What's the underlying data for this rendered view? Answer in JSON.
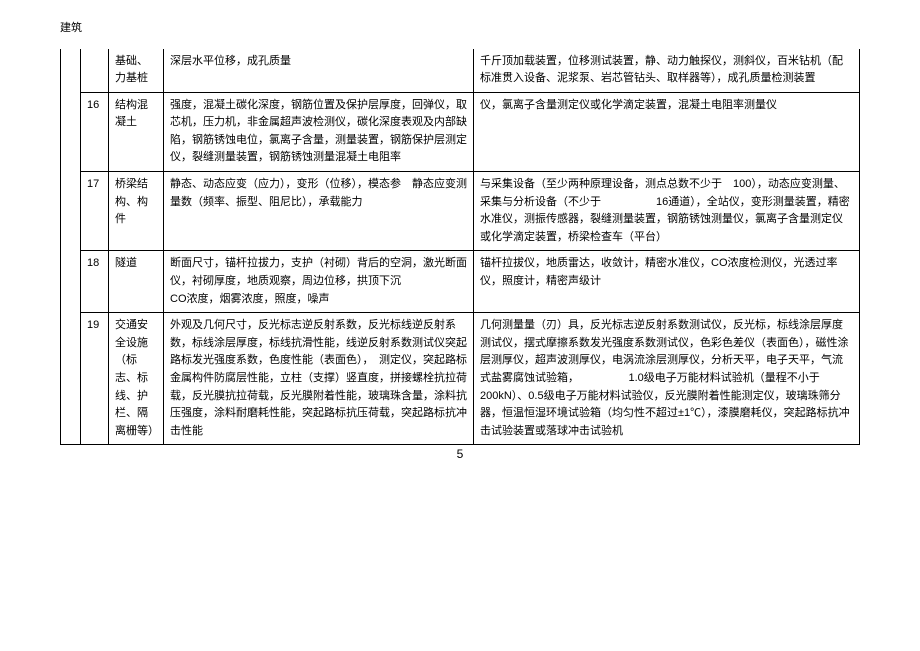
{
  "header": {
    "title": "建筑"
  },
  "footer": {
    "page_number": "5"
  },
  "rows": [
    {
      "num": "",
      "cat": "基础、力基桩",
      "left": "深层水平位移，成孔质量",
      "right": "千斤顶加载装置，位移测试装置，静、动力触探仪，测斜仪，百米钻机（配标准贯入设备、泥浆泵、岩芯管钻头、取样器等），成孔质量检测装置"
    },
    {
      "num": "16",
      "cat": "结构混凝土",
      "left": "强度，混凝土碳化深度，钢筋位置及保护层厚度，回弹仪，取芯机，压力机，非金属超声波检测仪，碳化深度表观及内部缺陷，钢筋锈蚀电位，氯离子含量，测量装置，钢筋保护层测定仪，裂缝测量装置，钢筋锈蚀测量混凝土电阻率",
      "right": "仪，氯离子含量测定仪或化学滴定装置，混凝土电阻率测量仪"
    },
    {
      "num": "17",
      "cat": "桥梁结构、构件",
      "left": "静态、动态应变（应力），变形（位移），模态参　静态应变测量数（频率、振型、阻尼比），承载能力",
      "right": "与采集设备（至少两种原理设备，测点总数不少于　100），动态应变测量、采集与分析设备（不少于　　　　　16通道），全站仪，变形测量装置，精密水准仪，测振传感器，裂缝测量装置，钢筋锈蚀测量仪，氯离子含量测定仪或化学滴定装置，桥梁检查车（平台）"
    },
    {
      "num": "18",
      "cat": "隧道",
      "left": "断面尺寸，锚杆拉拔力，支护（衬砌）背后的空洞，激光断面仪，衬砌厚度，地质观察，周边位移，拱顶下沉　　　　　CO浓度，烟雾浓度，照度，噪声",
      "right": "锚杆拉拔仪，地质雷达，收敛计，精密水准仪，CO浓度检测仪，光透过率仪，照度计，精密声级计"
    },
    {
      "num": "19",
      "cat": "交通安全设施（标志、标线、护栏、隔离栅等）",
      "left": "外观及几何尺寸，反光标志逆反射系数，反光标线逆反射系数，标线涂层厚度，标线抗滑性能，线逆反射系数测试仪突起路标发光强度系数，色度性能（表面色），　测定仪，突起路标金属构件防腐层性能，立柱（支撑）竖直度，拼接螺栓抗拉荷载，反光膜抗拉荷载，反光膜附着性能，玻璃珠含量，涂料抗压强度，涂料耐磨耗性能，突起路标抗压荷载，突起路标抗冲击性能",
      "right": "几何测量量（刃）具，反光标志逆反射系数测试仪，反光标，标线涂层厚度测试仪，摆式摩擦系数发光强度系数测试仪，色彩色差仪（表面色），磁性涂层测厚仪，超声波测厚仪，电涡流涂层测厚仪，分析天平，电子天平，气流式盐雾腐蚀试验箱，　　　　　1.0级电子万能材料试验机（量程不小于　　　　　200kN）、0.5级电子万能材料试验仪，反光膜附着性能测定仪，玻璃珠筛分器，恒温恒湿环境试验箱（均匀性不超过±1℃），漆膜磨耗仪，突起路标抗冲击试验装置或落球冲击试验机"
    }
  ]
}
